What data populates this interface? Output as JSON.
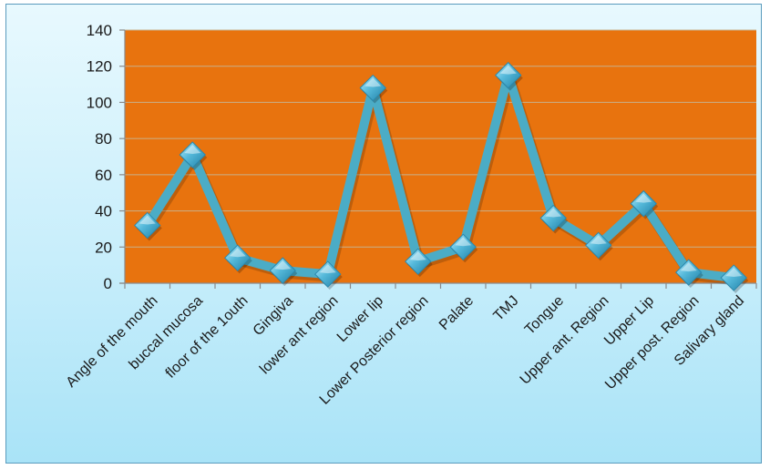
{
  "chart_data": {
    "type": "line",
    "title": "",
    "xlabel": "",
    "ylabel": "",
    "categories": [
      "Angle of the mouth",
      "buccal mucosa",
      "floor of the 1outh",
      "Gingiva",
      "lower ant region",
      "Lower lip",
      "Lower Posterior region",
      "Palate",
      "TMJ",
      "Tongue",
      "Upper ant. Region",
      "Upper Lip",
      "Upper post. Region",
      "Salivary gland"
    ],
    "series": [
      {
        "values": [
          32,
          71,
          14,
          7,
          5,
          108,
          12,
          20,
          115,
          36,
          21,
          44,
          6,
          3
        ]
      }
    ],
    "ylim": [
      0,
      140
    ],
    "yticks": [
      0,
      20,
      40,
      60,
      80,
      100,
      120,
      140
    ],
    "grid": true,
    "legend": "none",
    "colors": {
      "plot_background": "#E8730E",
      "line": "#4BACC6",
      "marker": "#3FA3C6",
      "grid": "#C8B08A",
      "frame_border": "#5A9BBD"
    }
  }
}
